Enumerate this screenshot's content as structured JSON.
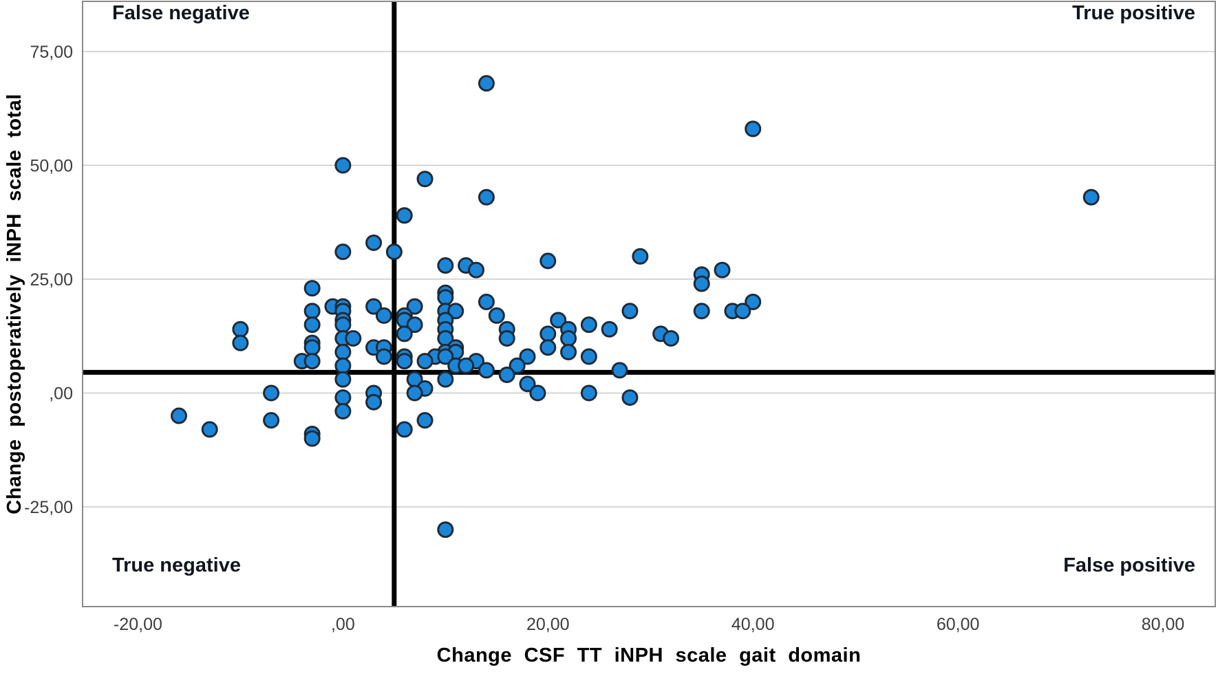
{
  "figure": {
    "background": "#ffffff"
  },
  "chart_data": {
    "type": "scatter",
    "title": "",
    "xlabel": "Change CSF TT iNPH scale gait domain",
    "ylabel": "Change postoperatively iNPH scale total",
    "xlim": [
      -25.4,
      85.1
    ],
    "ylim": [
      -46.9,
      86.0
    ],
    "grid": "horizontal",
    "legend": "none",
    "x_ticks": [
      {
        "value": -20,
        "label": "-20,00"
      },
      {
        "value": 0,
        "label": ",00"
      },
      {
        "value": 20,
        "label": "20,00"
      },
      {
        "value": 40,
        "label": "40,00"
      },
      {
        "value": 60,
        "label": "60,00"
      },
      {
        "value": 80,
        "label": "80,00"
      }
    ],
    "y_ticks": [
      {
        "value": 75,
        "label": "75,00"
      },
      {
        "value": 50,
        "label": "50,00"
      },
      {
        "value": 25,
        "label": "25,00"
      },
      {
        "value": 0,
        "label": ",00"
      },
      {
        "value": -25,
        "label": "-25,00"
      }
    ],
    "reference_lines": {
      "x_cutoff": 5,
      "y_cutoff": 5
    },
    "quadrant_labels": {
      "top_left": "False negative",
      "top_right": "True positive",
      "bottom_left": "True negative",
      "bottom_right": "False positive"
    },
    "colors": {
      "point_fill": "#1b86d8",
      "point_stroke": "#1e2a36",
      "grid": "#c9c9c9",
      "border": "#8a8a8a",
      "cutoff": "#000000",
      "tick_text": "#3d3d3d",
      "label_text": "#10161f"
    },
    "points": [
      [
        14,
        68
      ],
      [
        40,
        58
      ],
      [
        0,
        50
      ],
      [
        8,
        47
      ],
      [
        14,
        43
      ],
      [
        73,
        43
      ],
      [
        6,
        39
      ],
      [
        3,
        33
      ],
      [
        0,
        31
      ],
      [
        5,
        31
      ],
      [
        29,
        30
      ],
      [
        20,
        29
      ],
      [
        10,
        28
      ],
      [
        12,
        28
      ],
      [
        13,
        27
      ],
      [
        37,
        27
      ],
      [
        35,
        26
      ],
      [
        35,
        24
      ],
      [
        -3,
        23
      ],
      [
        10,
        22
      ],
      [
        10,
        21
      ],
      [
        40,
        20
      ],
      [
        14,
        20
      ],
      [
        -1,
        19
      ],
      [
        0,
        19
      ],
      [
        3,
        19
      ],
      [
        7,
        19
      ],
      [
        -3,
        18
      ],
      [
        0,
        18
      ],
      [
        10,
        18
      ],
      [
        11,
        18
      ],
      [
        28,
        18
      ],
      [
        35,
        18
      ],
      [
        38,
        18
      ],
      [
        39,
        18
      ],
      [
        4,
        17
      ],
      [
        15,
        17
      ],
      [
        6,
        17
      ],
      [
        0,
        16
      ],
      [
        10,
        16
      ],
      [
        21,
        16
      ],
      [
        6,
        16
      ],
      [
        -3,
        15
      ],
      [
        0,
        15
      ],
      [
        7,
        15
      ],
      [
        24,
        15
      ],
      [
        -10,
        14
      ],
      [
        10,
        14
      ],
      [
        16,
        14
      ],
      [
        22,
        14
      ],
      [
        26,
        14
      ],
      [
        6,
        13
      ],
      [
        20,
        13
      ],
      [
        31,
        13
      ],
      [
        0,
        12
      ],
      [
        1,
        12
      ],
      [
        10,
        12
      ],
      [
        16,
        12
      ],
      [
        22,
        12
      ],
      [
        32,
        12
      ],
      [
        -10,
        11
      ],
      [
        -3,
        11
      ],
      [
        -3,
        10
      ],
      [
        3,
        10
      ],
      [
        4,
        10
      ],
      [
        20,
        10
      ],
      [
        11,
        10
      ],
      [
        0,
        9
      ],
      [
        10,
        9
      ],
      [
        11,
        9
      ],
      [
        22,
        9
      ],
      [
        4,
        8
      ],
      [
        6,
        8
      ],
      [
        9,
        8
      ],
      [
        10,
        8
      ],
      [
        18,
        8
      ],
      [
        24,
        8
      ],
      [
        -4,
        7
      ],
      [
        -3,
        7
      ],
      [
        6,
        7
      ],
      [
        8,
        7
      ],
      [
        13,
        7
      ],
      [
        0,
        6
      ],
      [
        11,
        6
      ],
      [
        12,
        6
      ],
      [
        17,
        6
      ],
      [
        14,
        5
      ],
      [
        27,
        5
      ],
      [
        16,
        4
      ],
      [
        0,
        3
      ],
      [
        7,
        3
      ],
      [
        10,
        3
      ],
      [
        18,
        2
      ],
      [
        8,
        1
      ],
      [
        -7,
        0
      ],
      [
        3,
        0
      ],
      [
        7,
        0
      ],
      [
        19,
        0
      ],
      [
        24,
        0
      ],
      [
        0,
        -1
      ],
      [
        28,
        -1
      ],
      [
        3,
        -2
      ],
      [
        0,
        -4
      ],
      [
        -16,
        -5
      ],
      [
        -7,
        -6
      ],
      [
        8,
        -6
      ],
      [
        6,
        -8
      ],
      [
        -13,
        -8
      ],
      [
        -3,
        -9
      ],
      [
        -3,
        -10
      ],
      [
        10,
        -30
      ]
    ]
  }
}
